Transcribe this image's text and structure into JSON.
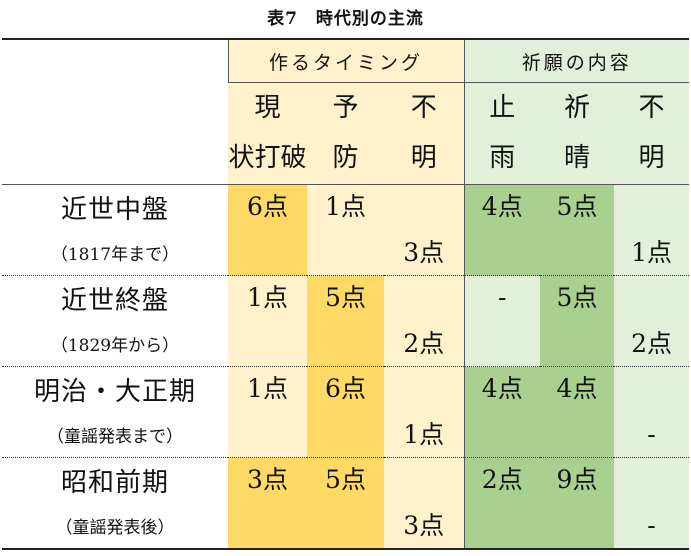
{
  "title": "表7　時代別の主流",
  "groups": {
    "timing": "作るタイミング",
    "wish": "祈願の内容"
  },
  "columns": [
    "現状打破",
    "予防",
    "不明",
    "止雨",
    "祈晴",
    "不明"
  ],
  "rows": [
    {
      "name": "近世中盤",
      "note": "（1817年まで）",
      "values": [
        "6点",
        "1点",
        "3点",
        "4点",
        "5点",
        "1点"
      ]
    },
    {
      "name": "近世終盤",
      "note": "（1829年から）",
      "values": [
        "1点",
        "5点",
        "2点",
        "-",
        "5点",
        "2点"
      ]
    },
    {
      "name": "明治・大正期",
      "note": "（童謡発表まで）",
      "values": [
        "1点",
        "6点",
        "1点",
        "4点",
        "4点",
        "-"
      ]
    },
    {
      "name": "昭和前期",
      "note": "（童謡発表後）",
      "values": [
        "3点",
        "5点",
        "3点",
        "2点",
        "9点",
        "-"
      ]
    }
  ],
  "colors": {
    "light_yellow": "#fff1cc",
    "yellow": "#ffd966",
    "light_green": "#e2efd9",
    "green": "#a9d08e"
  }
}
